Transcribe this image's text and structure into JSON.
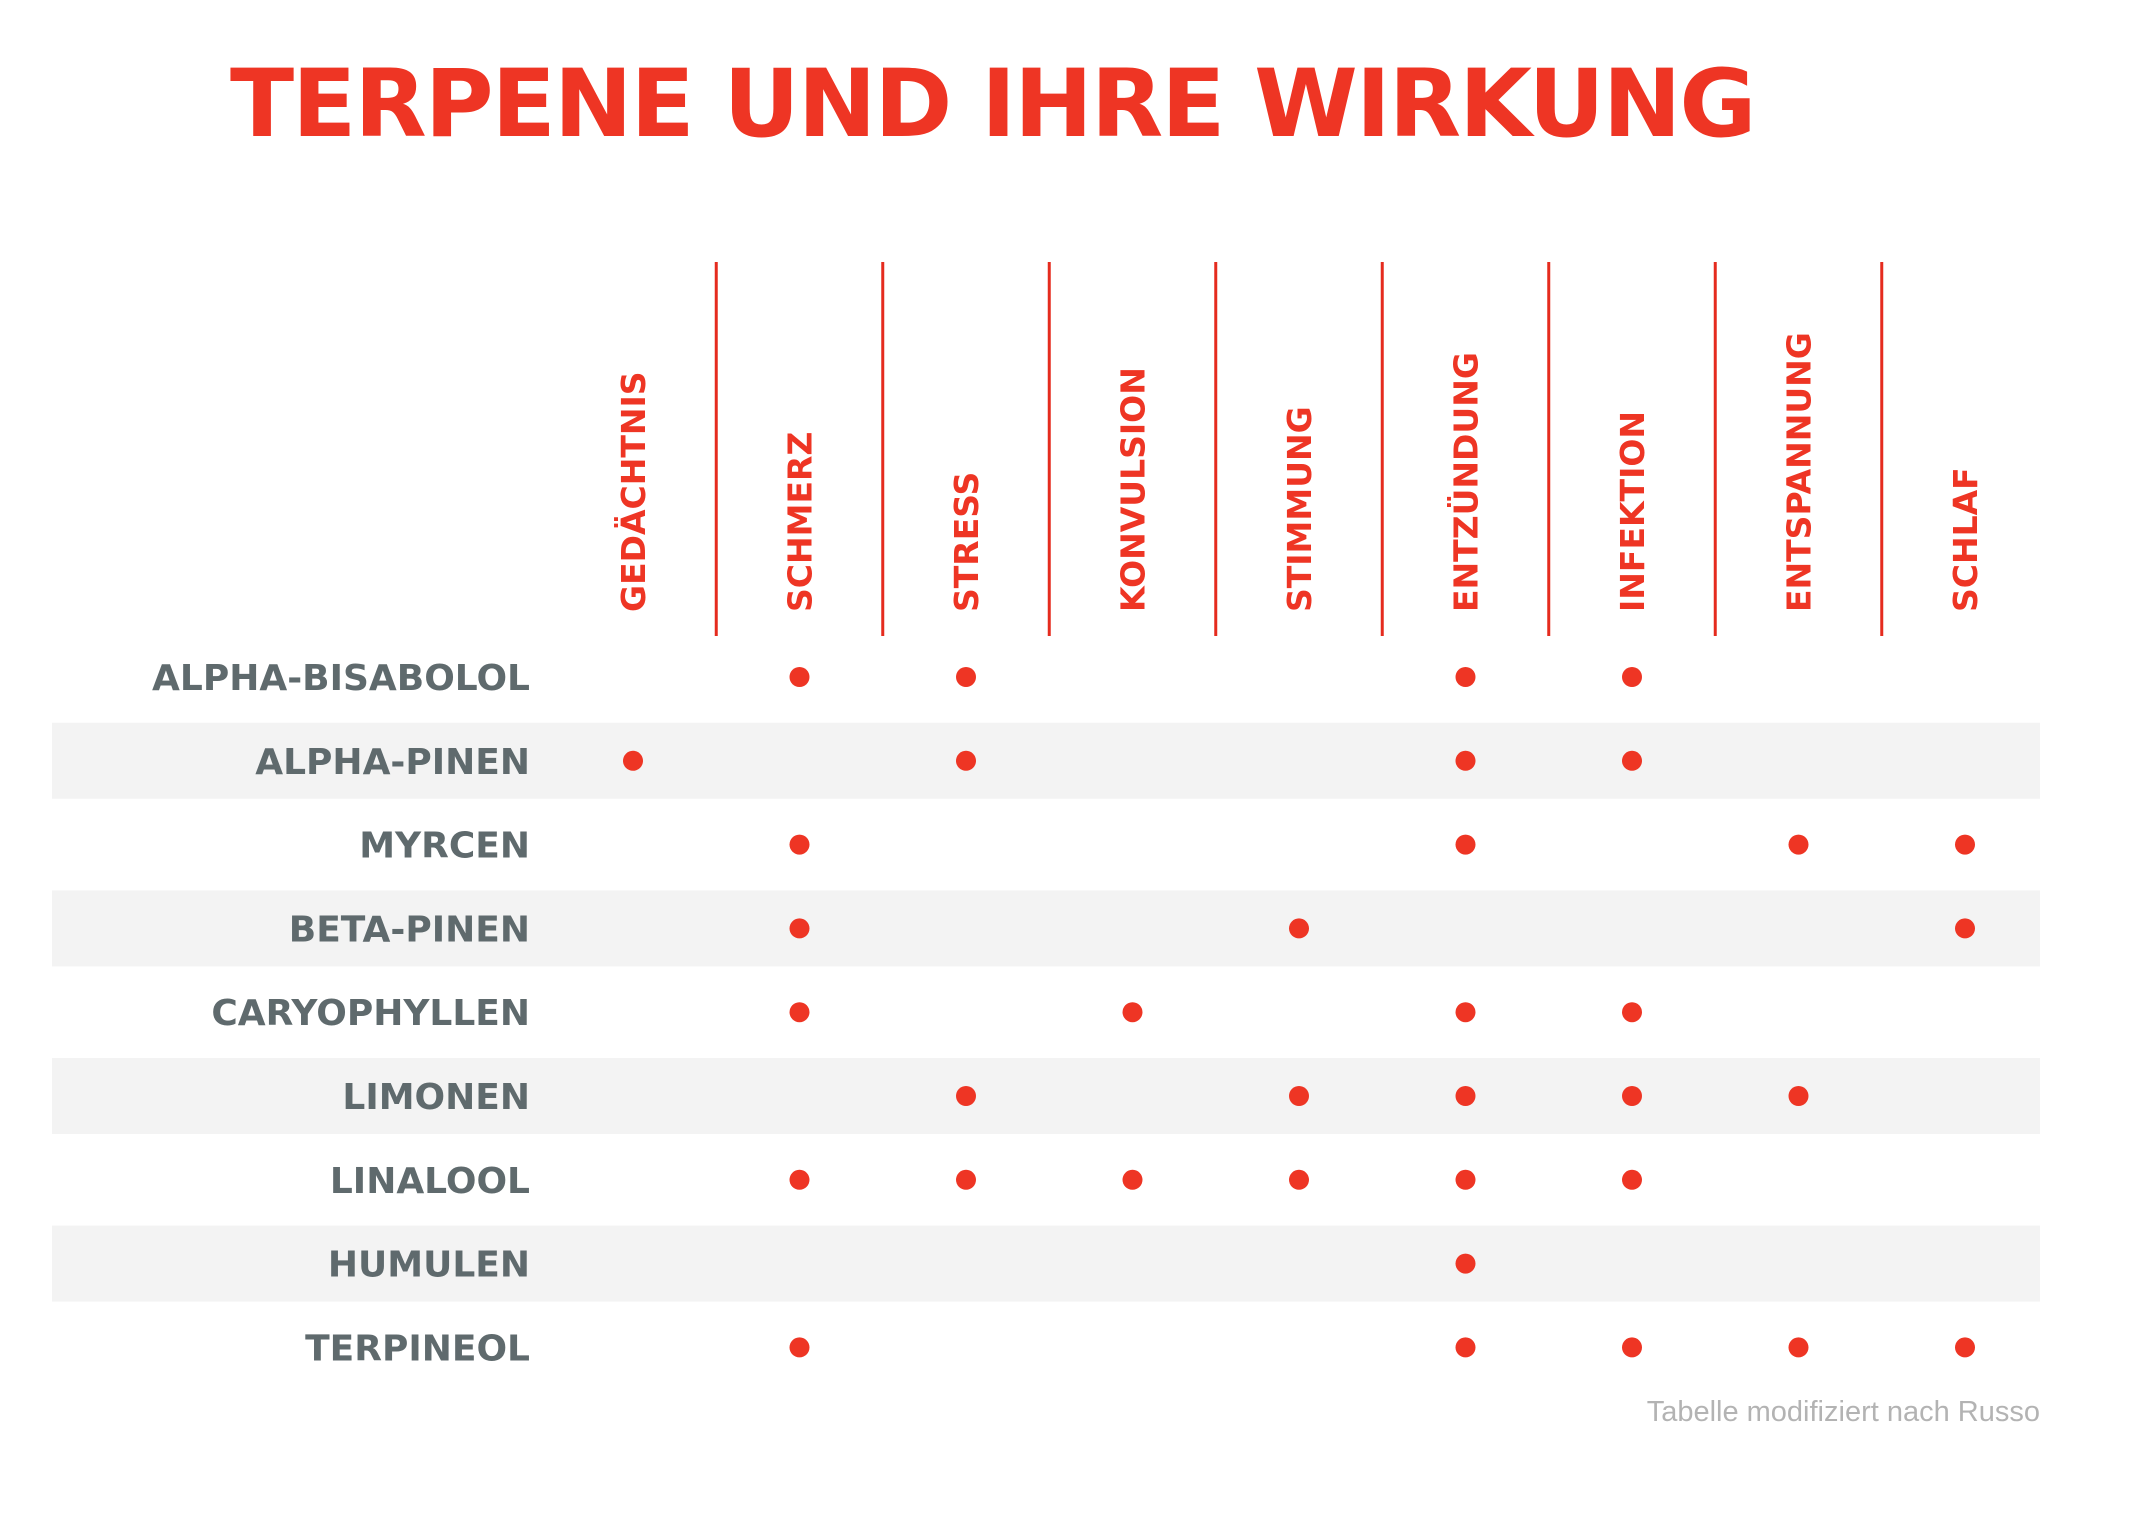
{
  "title": "TERPENE UND IHRE WIRKUNG",
  "source_note": "Tabelle modifiziert nach Russo",
  "colors": {
    "accent": "#ee3524",
    "row_label": "#5f6a6d",
    "band": "#f3f3f3",
    "divider": "#e52b1e",
    "note": "#b3b3b3"
  },
  "chart_data": {
    "type": "table",
    "columns": [
      "GEDÄCHTNIS",
      "SCHMERZ",
      "STRESS",
      "KONVULSION",
      "STIMMUNG",
      "ENTZÜNDUNG",
      "INFEKTION",
      "ENTSPANNUNG",
      "SCHLAF"
    ],
    "rows": [
      {
        "name": "ALPHA-BISABOLOL",
        "marks": [
          0,
          1,
          1,
          0,
          0,
          1,
          1,
          0,
          0
        ]
      },
      {
        "name": "ALPHA-PINEN",
        "marks": [
          1,
          0,
          1,
          0,
          0,
          1,
          1,
          0,
          0
        ]
      },
      {
        "name": "MYRCEN",
        "marks": [
          0,
          1,
          0,
          0,
          0,
          1,
          0,
          1,
          1
        ]
      },
      {
        "name": "BETA-PINEN",
        "marks": [
          0,
          1,
          0,
          0,
          1,
          0,
          0,
          0,
          1
        ]
      },
      {
        "name": "CARYOPHYLLEN",
        "marks": [
          0,
          1,
          0,
          1,
          0,
          1,
          1,
          0,
          0
        ]
      },
      {
        "name": "LIMONEN",
        "marks": [
          0,
          0,
          1,
          0,
          1,
          1,
          1,
          1,
          0
        ]
      },
      {
        "name": "LINALOOL",
        "marks": [
          0,
          1,
          1,
          1,
          1,
          1,
          1,
          0,
          0
        ]
      },
      {
        "name": "HUMULEN",
        "marks": [
          0,
          0,
          0,
          0,
          0,
          1,
          0,
          0,
          0
        ]
      },
      {
        "name": "TERPINEOL",
        "marks": [
          0,
          1,
          0,
          0,
          0,
          1,
          1,
          1,
          1
        ]
      }
    ]
  }
}
